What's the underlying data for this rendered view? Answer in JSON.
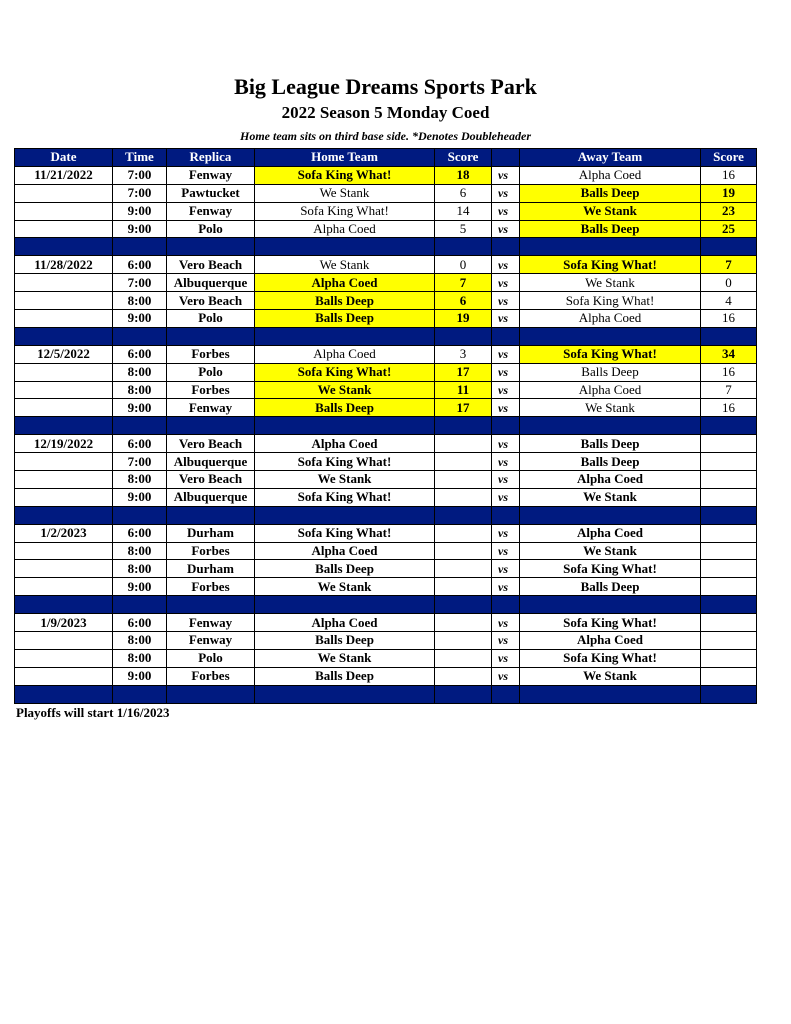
{
  "title": "Big League Dreams Sports Park",
  "subtitle": "2022 Season 5 Monday Coed",
  "note": "Home team sits on third base side.  *Denotes Doubleheader",
  "colors": {
    "header_bg": "#001a80",
    "winner_highlight": "#ffff00"
  },
  "columns": [
    "Date",
    "Time",
    "Replica",
    "Home Team",
    "Score",
    "",
    "Away Team",
    "Score"
  ],
  "vs_label": "vs",
  "weeks": [
    {
      "date": "11/21/2022",
      "games": [
        {
          "time": "7:00",
          "replica": "Fenway",
          "home": "Sofa King What!",
          "home_score": "18",
          "away": "Alpha Coed",
          "away_score": "16",
          "winner": "home"
        },
        {
          "time": "7:00",
          "replica": "Pawtucket",
          "home": "We Stank",
          "home_score": "6",
          "away": "Balls Deep",
          "away_score": "19",
          "winner": "away"
        },
        {
          "time": "9:00",
          "replica": "Fenway",
          "home": "Sofa King What!",
          "home_score": "14",
          "away": "We Stank",
          "away_score": "23",
          "winner": "away"
        },
        {
          "time": "9:00",
          "replica": "Polo",
          "home": "Alpha Coed",
          "home_score": "5",
          "away": "Balls Deep",
          "away_score": "25",
          "winner": "away"
        }
      ]
    },
    {
      "date": "11/28/2022",
      "games": [
        {
          "time": "6:00",
          "replica": "Vero Beach",
          "home": "We Stank",
          "home_score": "0",
          "away": "Sofa King What!",
          "away_score": "7",
          "winner": "away"
        },
        {
          "time": "7:00",
          "replica": "Albuquerque",
          "home": "Alpha Coed",
          "home_score": "7",
          "away": "We Stank",
          "away_score": "0",
          "winner": "home"
        },
        {
          "time": "8:00",
          "replica": "Vero Beach",
          "home": "Balls Deep",
          "home_score": "6",
          "away": "Sofa King What!",
          "away_score": "4",
          "winner": "home"
        },
        {
          "time": "9:00",
          "replica": "Polo",
          "home": "Balls Deep",
          "home_score": "19",
          "away": "Alpha Coed",
          "away_score": "16",
          "winner": "home"
        }
      ]
    },
    {
      "date": "12/5/2022",
      "games": [
        {
          "time": "6:00",
          "replica": "Forbes",
          "home": "Alpha Coed",
          "home_score": "3",
          "away": "Sofa King What!",
          "away_score": "34",
          "winner": "away"
        },
        {
          "time": "8:00",
          "replica": "Polo",
          "home": "Sofa King What!",
          "home_score": "17",
          "away": "Balls Deep",
          "away_score": "16",
          "winner": "home"
        },
        {
          "time": "8:00",
          "replica": "Forbes",
          "home": "We Stank",
          "home_score": "11",
          "away": "Alpha Coed",
          "away_score": "7",
          "winner": "home"
        },
        {
          "time": "9:00",
          "replica": "Fenway",
          "home": "Balls Deep",
          "home_score": "17",
          "away": "We Stank",
          "away_score": "16",
          "winner": "home"
        }
      ]
    },
    {
      "date": "12/19/2022",
      "games": [
        {
          "time": "6:00",
          "replica": "Vero Beach",
          "home": "Alpha Coed",
          "home_score": "",
          "away": "Balls Deep",
          "away_score": "",
          "winner": null
        },
        {
          "time": "7:00",
          "replica": "Albuquerque",
          "home": "Sofa King What!",
          "home_score": "",
          "away": "Balls Deep",
          "away_score": "",
          "winner": null
        },
        {
          "time": "8:00",
          "replica": "Vero Beach",
          "home": "We Stank",
          "home_score": "",
          "away": "Alpha Coed",
          "away_score": "",
          "winner": null
        },
        {
          "time": "9:00",
          "replica": "Albuquerque",
          "home": "Sofa King What!",
          "home_score": "",
          "away": "We Stank",
          "away_score": "",
          "winner": null
        }
      ]
    },
    {
      "date": "1/2/2023",
      "games": [
        {
          "time": "6:00",
          "replica": "Durham",
          "home": "Sofa King What!",
          "home_score": "",
          "away": "Alpha Coed",
          "away_score": "",
          "winner": null
        },
        {
          "time": "8:00",
          "replica": "Forbes",
          "home": "Alpha Coed",
          "home_score": "",
          "away": "We Stank",
          "away_score": "",
          "winner": null
        },
        {
          "time": "8:00",
          "replica": "Durham",
          "home": "Balls Deep",
          "home_score": "",
          "away": "Sofa King What!",
          "away_score": "",
          "winner": null
        },
        {
          "time": "9:00",
          "replica": "Forbes",
          "home": "We Stank",
          "home_score": "",
          "away": "Balls Deep",
          "away_score": "",
          "winner": null
        }
      ]
    },
    {
      "date": "1/9/2023",
      "games": [
        {
          "time": "6:00",
          "replica": "Fenway",
          "home": "Alpha Coed",
          "home_score": "",
          "away": "Sofa King What!",
          "away_score": "",
          "winner": null
        },
        {
          "time": "8:00",
          "replica": "Fenway",
          "home": "Balls Deep",
          "home_score": "",
          "away": "Alpha Coed",
          "away_score": "",
          "winner": null
        },
        {
          "time": "8:00",
          "replica": "Polo",
          "home": "We Stank",
          "home_score": "",
          "away": "Sofa King What!",
          "away_score": "",
          "winner": null
        },
        {
          "time": "9:00",
          "replica": "Forbes",
          "home": "Balls Deep",
          "home_score": "",
          "away": "We Stank",
          "away_score": "",
          "winner": null
        }
      ]
    }
  ],
  "footer": "Playoffs will start 1/16/2023"
}
